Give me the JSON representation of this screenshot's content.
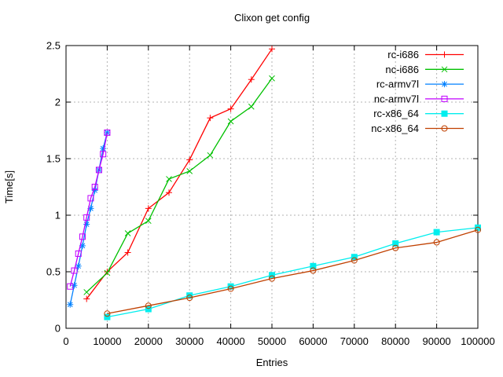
{
  "title": "Clixon get config",
  "chart_data": {
    "type": "line",
    "title": "Clixon get config",
    "xlabel": "Entries",
    "ylabel": "Time[s]",
    "xlim": [
      0,
      100000
    ],
    "ylim": [
      0,
      2.5
    ],
    "x_ticks": [
      0,
      10000,
      20000,
      30000,
      40000,
      50000,
      60000,
      70000,
      80000,
      90000,
      100000
    ],
    "x_tick_labels": [
      "0",
      "10000",
      "20000",
      "30000",
      "40000",
      "50000",
      "60000",
      "70000",
      "80000",
      "90000",
      "100000"
    ],
    "y_ticks": [
      0,
      0.5,
      1,
      1.5,
      2,
      2.5
    ],
    "y_tick_labels": [
      "0",
      "0.5",
      "1",
      "1.5",
      "2",
      "2.5"
    ],
    "grid": true,
    "grid_color": "#b3b3b3",
    "border_color": "#000000",
    "legend_position": "top-right-inside",
    "series": [
      {
        "name": "rc-i686",
        "color": "#ff0000",
        "marker": "plus",
        "x": [
          5000,
          10000,
          15000,
          20000,
          25000,
          30000,
          35000,
          40000,
          45000,
          50000
        ],
        "y": [
          0.26,
          0.5,
          0.67,
          1.06,
          1.2,
          1.49,
          1.86,
          1.94,
          2.2,
          2.47
        ]
      },
      {
        "name": "nc-i686",
        "color": "#00c000",
        "marker": "cross",
        "x": [
          5000,
          10000,
          15000,
          20000,
          25000,
          30000,
          35000,
          40000,
          45000,
          50000
        ],
        "y": [
          0.32,
          0.49,
          0.84,
          0.95,
          1.32,
          1.39,
          1.53,
          1.83,
          1.96,
          2.21
        ]
      },
      {
        "name": "rc-armv7l",
        "color": "#0080ff",
        "marker": "asterisk",
        "x": [
          1000,
          2000,
          3000,
          4000,
          5000,
          6000,
          7000,
          8000,
          9000,
          10000
        ],
        "y": [
          0.21,
          0.38,
          0.55,
          0.73,
          0.92,
          1.06,
          1.22,
          1.4,
          1.59,
          1.73
        ]
      },
      {
        "name": "nc-armv7l",
        "color": "#c000ff",
        "marker": "square-open",
        "x": [
          1000,
          2000,
          3000,
          4000,
          5000,
          6000,
          7000,
          8000,
          9000,
          10000
        ],
        "y": [
          0.37,
          0.51,
          0.66,
          0.81,
          0.98,
          1.15,
          1.25,
          1.4,
          1.54,
          1.73
        ]
      },
      {
        "name": "rc-x86_64",
        "color": "#00eeee",
        "marker": "square-filled",
        "x": [
          10000,
          20000,
          30000,
          40000,
          50000,
          60000,
          70000,
          80000,
          90000,
          100000
        ],
        "y": [
          0.1,
          0.17,
          0.29,
          0.37,
          0.47,
          0.55,
          0.63,
          0.75,
          0.85,
          0.89
        ]
      },
      {
        "name": "nc-x86_64",
        "color": "#c04000",
        "marker": "circle-open",
        "x": [
          10000,
          20000,
          30000,
          40000,
          50000,
          60000,
          70000,
          80000,
          90000,
          100000
        ],
        "y": [
          0.13,
          0.2,
          0.27,
          0.35,
          0.44,
          0.51,
          0.6,
          0.71,
          0.76,
          0.87
        ]
      }
    ]
  }
}
